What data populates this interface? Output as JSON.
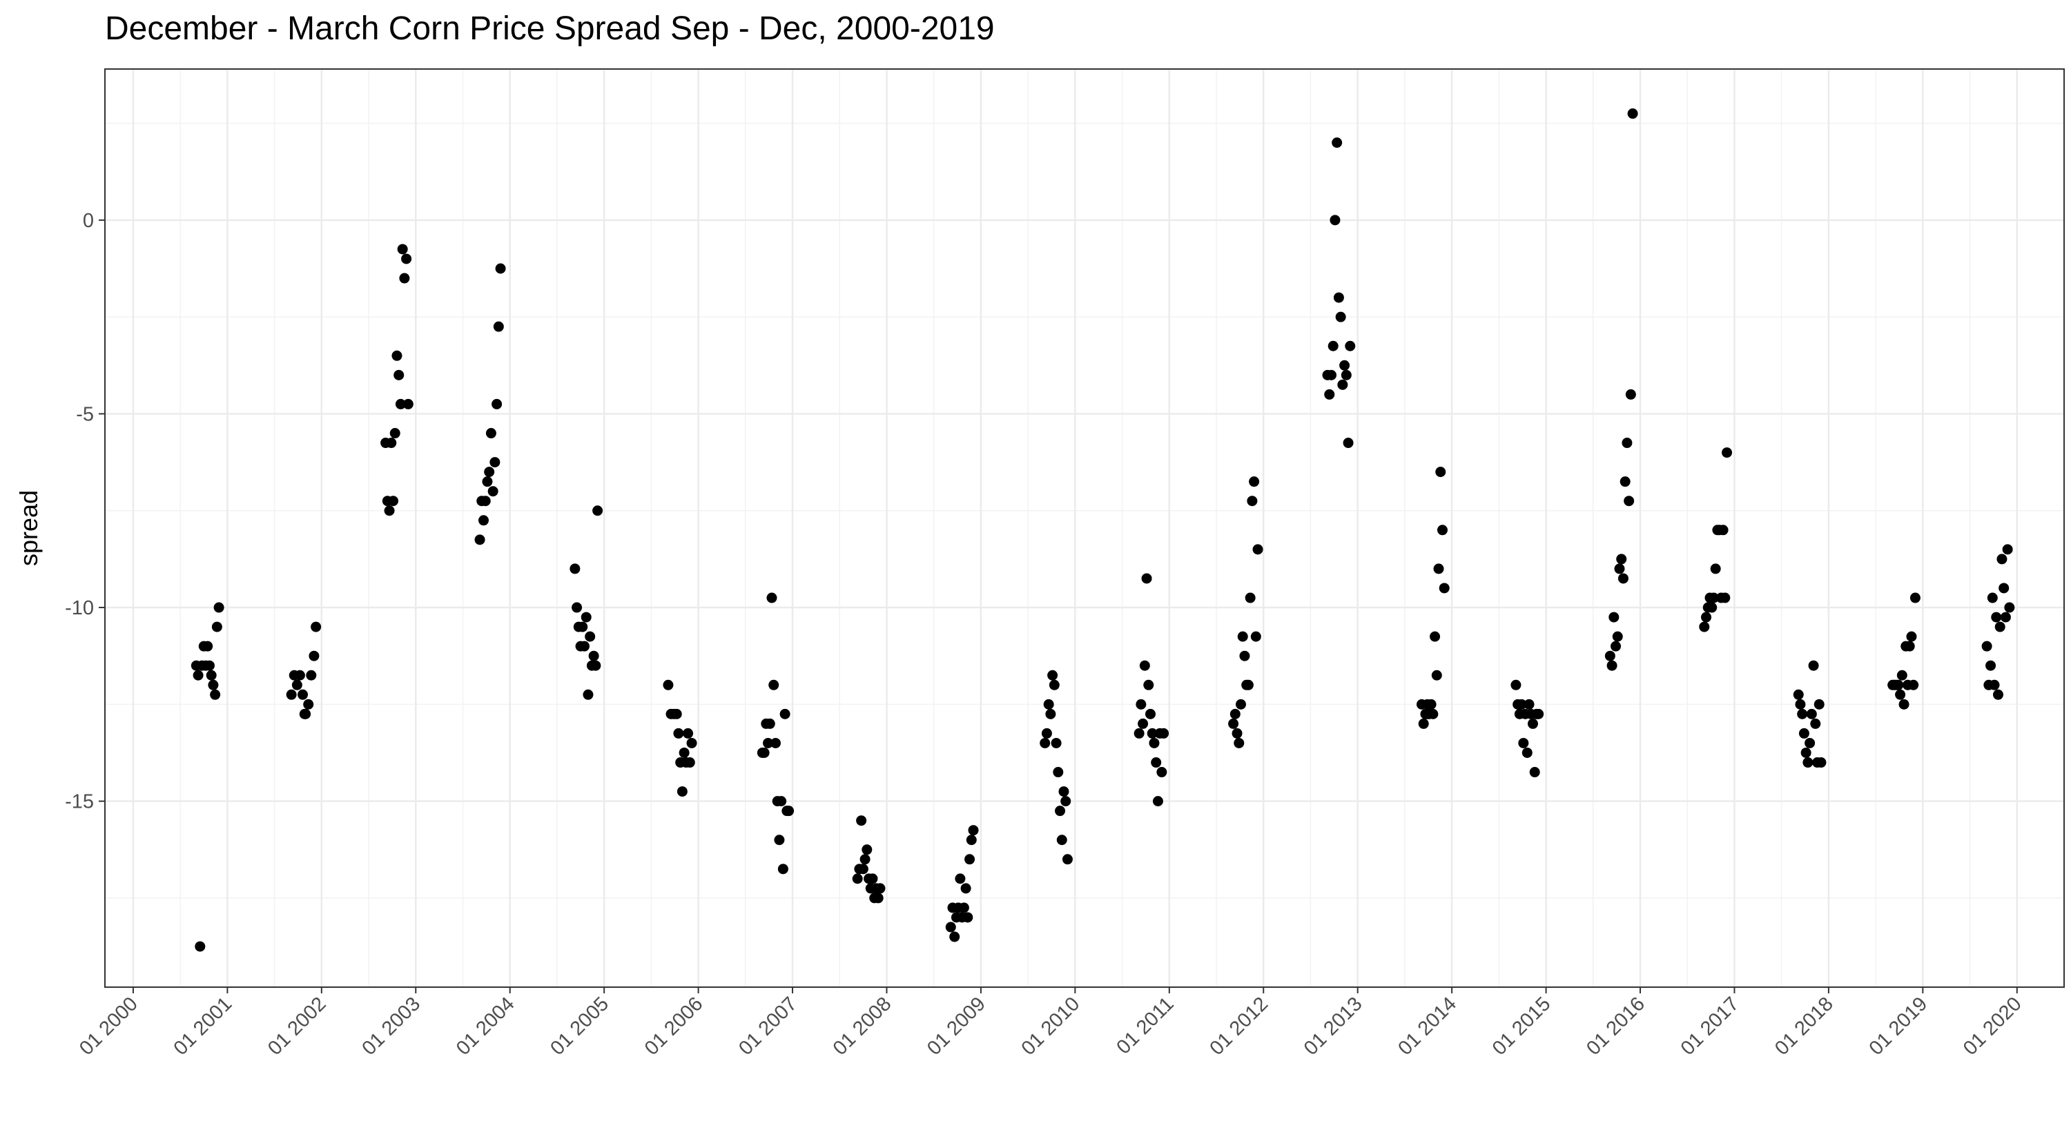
{
  "chart_data": {
    "type": "scatter",
    "title": "December - March Corn Price Spread Sep - Dec, 2000-2019",
    "xlabel": "",
    "ylabel": "spread",
    "xlim": [
      1999.7,
      2020.5
    ],
    "ylim": [
      -19.8,
      3.9
    ],
    "grid": true,
    "legend": "none",
    "point_color": "#000000",
    "x_ticks": [
      2000,
      2001,
      2002,
      2003,
      2004,
      2005,
      2006,
      2007,
      2008,
      2009,
      2010,
      2011,
      2012,
      2013,
      2014,
      2015,
      2016,
      2017,
      2018,
      2019,
      2020
    ],
    "x_tick_labels": [
      "01 2000",
      "01 2001",
      "01 2002",
      "01 2003",
      "01 2004",
      "01 2005",
      "01 2006",
      "01 2007",
      "01 2008",
      "01 2009",
      "01 2010",
      "01 2011",
      "01 2012",
      "01 2013",
      "01 2014",
      "01 2015",
      "01 2016",
      "01 2017",
      "01 2018",
      "01 2019",
      "01 2020"
    ],
    "y_ticks": [
      0,
      -5,
      -10,
      -15
    ],
    "y_tick_labels": [
      "0",
      "-5",
      "-10",
      "-15"
    ],
    "points": [
      {
        "x": 2000.67,
        "y": -11.5
      },
      {
        "x": 2000.69,
        "y": -11.75
      },
      {
        "x": 2000.71,
        "y": -18.75
      },
      {
        "x": 2000.73,
        "y": -11.5
      },
      {
        "x": 2000.75,
        "y": -11.0
      },
      {
        "x": 2000.77,
        "y": -11.5
      },
      {
        "x": 2000.79,
        "y": -11.0
      },
      {
        "x": 2000.81,
        "y": -11.5
      },
      {
        "x": 2000.83,
        "y": -11.75
      },
      {
        "x": 2000.85,
        "y": -12.0
      },
      {
        "x": 2000.87,
        "y": -12.25
      },
      {
        "x": 2000.89,
        "y": -10.5
      },
      {
        "x": 2000.91,
        "y": -10.0
      },
      {
        "x": 2001.68,
        "y": -12.25
      },
      {
        "x": 2001.71,
        "y": -11.75
      },
      {
        "x": 2001.74,
        "y": -12.0
      },
      {
        "x": 2001.77,
        "y": -11.75
      },
      {
        "x": 2001.8,
        "y": -12.25
      },
      {
        "x": 2001.83,
        "y": -12.75
      },
      {
        "x": 2001.86,
        "y": -12.5
      },
      {
        "x": 2001.89,
        "y": -11.75
      },
      {
        "x": 2001.92,
        "y": -11.25
      },
      {
        "x": 2001.94,
        "y": -10.5
      },
      {
        "x": 2001.82,
        "y": -12.75
      },
      {
        "x": 2002.68,
        "y": -5.75
      },
      {
        "x": 2002.7,
        "y": -7.25
      },
      {
        "x": 2002.72,
        "y": -7.5
      },
      {
        "x": 2002.74,
        "y": -5.75
      },
      {
        "x": 2002.76,
        "y": -7.25
      },
      {
        "x": 2002.78,
        "y": -5.5
      },
      {
        "x": 2002.8,
        "y": -3.5
      },
      {
        "x": 2002.82,
        "y": -4.0
      },
      {
        "x": 2002.84,
        "y": -4.75
      },
      {
        "x": 2002.86,
        "y": -0.75
      },
      {
        "x": 2002.88,
        "y": -1.5
      },
      {
        "x": 2002.9,
        "y": -1.0
      },
      {
        "x": 2002.92,
        "y": -4.75
      },
      {
        "x": 2003.68,
        "y": -8.25
      },
      {
        "x": 2003.7,
        "y": -7.25
      },
      {
        "x": 2003.72,
        "y": -7.75
      },
      {
        "x": 2003.74,
        "y": -7.25
      },
      {
        "x": 2003.76,
        "y": -6.75
      },
      {
        "x": 2003.78,
        "y": -6.5
      },
      {
        "x": 2003.8,
        "y": -5.5
      },
      {
        "x": 2003.82,
        "y": -7.0
      },
      {
        "x": 2003.84,
        "y": -6.25
      },
      {
        "x": 2003.86,
        "y": -4.75
      },
      {
        "x": 2003.88,
        "y": -2.75
      },
      {
        "x": 2003.9,
        "y": -1.25
      },
      {
        "x": 2004.69,
        "y": -9.0
      },
      {
        "x": 2004.71,
        "y": -10.0
      },
      {
        "x": 2004.73,
        "y": -10.5
      },
      {
        "x": 2004.75,
        "y": -11.0
      },
      {
        "x": 2004.77,
        "y": -10.5
      },
      {
        "x": 2004.79,
        "y": -11.0
      },
      {
        "x": 2004.81,
        "y": -10.25
      },
      {
        "x": 2004.83,
        "y": -12.25
      },
      {
        "x": 2004.85,
        "y": -10.75
      },
      {
        "x": 2004.87,
        "y": -11.5
      },
      {
        "x": 2004.89,
        "y": -11.25
      },
      {
        "x": 2004.91,
        "y": -11.5
      },
      {
        "x": 2004.93,
        "y": -7.5
      },
      {
        "x": 2005.68,
        "y": -12.0
      },
      {
        "x": 2005.71,
        "y": -12.75
      },
      {
        "x": 2005.74,
        "y": -12.75
      },
      {
        "x": 2005.77,
        "y": -12.75
      },
      {
        "x": 2005.79,
        "y": -13.25
      },
      {
        "x": 2005.81,
        "y": -14.0
      },
      {
        "x": 2005.83,
        "y": -14.75
      },
      {
        "x": 2005.85,
        "y": -13.75
      },
      {
        "x": 2005.87,
        "y": -14.0
      },
      {
        "x": 2005.89,
        "y": -13.25
      },
      {
        "x": 2005.91,
        "y": -14.0
      },
      {
        "x": 2005.93,
        "y": -13.5
      },
      {
        "x": 2006.68,
        "y": -13.75
      },
      {
        "x": 2006.7,
        "y": -13.75
      },
      {
        "x": 2006.72,
        "y": -13.0
      },
      {
        "x": 2006.74,
        "y": -13.5
      },
      {
        "x": 2006.76,
        "y": -13.0
      },
      {
        "x": 2006.78,
        "y": -9.75
      },
      {
        "x": 2006.8,
        "y": -12.0
      },
      {
        "x": 2006.82,
        "y": -13.5
      },
      {
        "x": 2006.84,
        "y": -15.0
      },
      {
        "x": 2006.86,
        "y": -16.0
      },
      {
        "x": 2006.88,
        "y": -15.0
      },
      {
        "x": 2006.9,
        "y": -16.75
      },
      {
        "x": 2006.92,
        "y": -12.75
      },
      {
        "x": 2006.94,
        "y": -15.25
      },
      {
        "x": 2006.96,
        "y": -15.25
      },
      {
        "x": 2007.69,
        "y": -17.0
      },
      {
        "x": 2007.71,
        "y": -16.75
      },
      {
        "x": 2007.73,
        "y": -15.5
      },
      {
        "x": 2007.75,
        "y": -16.75
      },
      {
        "x": 2007.77,
        "y": -16.5
      },
      {
        "x": 2007.79,
        "y": -16.25
      },
      {
        "x": 2007.81,
        "y": -17.0
      },
      {
        "x": 2007.83,
        "y": -17.25
      },
      {
        "x": 2007.85,
        "y": -17.0
      },
      {
        "x": 2007.87,
        "y": -17.5
      },
      {
        "x": 2007.89,
        "y": -17.25
      },
      {
        "x": 2007.91,
        "y": -17.5
      },
      {
        "x": 2007.93,
        "y": -17.25
      },
      {
        "x": 2008.68,
        "y": -18.25
      },
      {
        "x": 2008.7,
        "y": -17.75
      },
      {
        "x": 2008.72,
        "y": -18.5
      },
      {
        "x": 2008.74,
        "y": -18.0
      },
      {
        "x": 2008.76,
        "y": -17.75
      },
      {
        "x": 2008.78,
        "y": -17.0
      },
      {
        "x": 2008.8,
        "y": -18.0
      },
      {
        "x": 2008.82,
        "y": -17.75
      },
      {
        "x": 2008.84,
        "y": -17.25
      },
      {
        "x": 2008.86,
        "y": -18.0
      },
      {
        "x": 2008.88,
        "y": -16.5
      },
      {
        "x": 2008.9,
        "y": -16.0
      },
      {
        "x": 2008.92,
        "y": -15.75
      },
      {
        "x": 2009.68,
        "y": -13.5
      },
      {
        "x": 2009.7,
        "y": -13.25
      },
      {
        "x": 2009.72,
        "y": -12.5
      },
      {
        "x": 2009.74,
        "y": -12.75
      },
      {
        "x": 2009.76,
        "y": -11.75
      },
      {
        "x": 2009.78,
        "y": -12.0
      },
      {
        "x": 2009.8,
        "y": -13.5
      },
      {
        "x": 2009.82,
        "y": -14.25
      },
      {
        "x": 2009.84,
        "y": -15.25
      },
      {
        "x": 2009.86,
        "y": -16.0
      },
      {
        "x": 2009.88,
        "y": -14.75
      },
      {
        "x": 2009.9,
        "y": -15.0
      },
      {
        "x": 2009.92,
        "y": -16.5
      },
      {
        "x": 2010.68,
        "y": -13.25
      },
      {
        "x": 2010.7,
        "y": -12.5
      },
      {
        "x": 2010.72,
        "y": -13.0
      },
      {
        "x": 2010.74,
        "y": -11.5
      },
      {
        "x": 2010.76,
        "y": -9.25
      },
      {
        "x": 2010.78,
        "y": -12.0
      },
      {
        "x": 2010.8,
        "y": -12.75
      },
      {
        "x": 2010.82,
        "y": -13.25
      },
      {
        "x": 2010.84,
        "y": -13.5
      },
      {
        "x": 2010.86,
        "y": -14.0
      },
      {
        "x": 2010.88,
        "y": -15.0
      },
      {
        "x": 2010.9,
        "y": -13.25
      },
      {
        "x": 2010.92,
        "y": -14.25
      },
      {
        "x": 2010.94,
        "y": -13.25
      },
      {
        "x": 2011.68,
        "y": -13.0
      },
      {
        "x": 2011.7,
        "y": -12.75
      },
      {
        "x": 2011.72,
        "y": -13.25
      },
      {
        "x": 2011.74,
        "y": -13.5
      },
      {
        "x": 2011.76,
        "y": -12.5
      },
      {
        "x": 2011.78,
        "y": -10.75
      },
      {
        "x": 2011.8,
        "y": -11.25
      },
      {
        "x": 2011.82,
        "y": -12.0
      },
      {
        "x": 2011.84,
        "y": -12.0
      },
      {
        "x": 2011.86,
        "y": -9.75
      },
      {
        "x": 2011.88,
        "y": -7.25
      },
      {
        "x": 2011.9,
        "y": -6.75
      },
      {
        "x": 2011.92,
        "y": -10.75
      },
      {
        "x": 2011.94,
        "y": -8.5
      },
      {
        "x": 2012.68,
        "y": -4.0
      },
      {
        "x": 2012.7,
        "y": -4.5
      },
      {
        "x": 2012.72,
        "y": -4.0
      },
      {
        "x": 2012.74,
        "y": -3.25
      },
      {
        "x": 2012.76,
        "y": 0.0
      },
      {
        "x": 2012.78,
        "y": 2.0
      },
      {
        "x": 2012.8,
        "y": -2.0
      },
      {
        "x": 2012.82,
        "y": -2.5
      },
      {
        "x": 2012.84,
        "y": -4.25
      },
      {
        "x": 2012.86,
        "y": -3.75
      },
      {
        "x": 2012.88,
        "y": -4.0
      },
      {
        "x": 2012.9,
        "y": -5.75
      },
      {
        "x": 2012.92,
        "y": -3.25
      },
      {
        "x": 2013.68,
        "y": -12.5
      },
      {
        "x": 2013.7,
        "y": -13.0
      },
      {
        "x": 2013.72,
        "y": -12.75
      },
      {
        "x": 2013.74,
        "y": -12.5
      },
      {
        "x": 2013.76,
        "y": -12.75
      },
      {
        "x": 2013.78,
        "y": -12.5
      },
      {
        "x": 2013.8,
        "y": -12.75
      },
      {
        "x": 2013.82,
        "y": -10.75
      },
      {
        "x": 2013.84,
        "y": -11.75
      },
      {
        "x": 2013.86,
        "y": -9.0
      },
      {
        "x": 2013.88,
        "y": -6.5
      },
      {
        "x": 2013.9,
        "y": -8.0
      },
      {
        "x": 2013.92,
        "y": -9.5
      },
      {
        "x": 2013.74,
        "y": -12.75
      },
      {
        "x": 2014.68,
        "y": -12.0
      },
      {
        "x": 2014.7,
        "y": -12.5
      },
      {
        "x": 2014.72,
        "y": -12.75
      },
      {
        "x": 2014.74,
        "y": -12.5
      },
      {
        "x": 2014.76,
        "y": -13.5
      },
      {
        "x": 2014.78,
        "y": -12.75
      },
      {
        "x": 2014.8,
        "y": -13.75
      },
      {
        "x": 2014.82,
        "y": -12.5
      },
      {
        "x": 2014.84,
        "y": -12.75
      },
      {
        "x": 2014.86,
        "y": -13.0
      },
      {
        "x": 2014.88,
        "y": -14.25
      },
      {
        "x": 2014.9,
        "y": -12.75
      },
      {
        "x": 2014.92,
        "y": -12.75
      },
      {
        "x": 2015.68,
        "y": -11.25
      },
      {
        "x": 2015.7,
        "y": -11.5
      },
      {
        "x": 2015.72,
        "y": -10.25
      },
      {
        "x": 2015.74,
        "y": -11.0
      },
      {
        "x": 2015.76,
        "y": -10.75
      },
      {
        "x": 2015.78,
        "y": -9.0
      },
      {
        "x": 2015.8,
        "y": -8.75
      },
      {
        "x": 2015.82,
        "y": -9.25
      },
      {
        "x": 2015.84,
        "y": -6.75
      },
      {
        "x": 2015.86,
        "y": -5.75
      },
      {
        "x": 2015.88,
        "y": -7.25
      },
      {
        "x": 2015.9,
        "y": -4.5
      },
      {
        "x": 2015.92,
        "y": 2.75
      },
      {
        "x": 2016.68,
        "y": -10.5
      },
      {
        "x": 2016.7,
        "y": -10.25
      },
      {
        "x": 2016.72,
        "y": -10.0
      },
      {
        "x": 2016.74,
        "y": -9.75
      },
      {
        "x": 2016.76,
        "y": -10.0
      },
      {
        "x": 2016.78,
        "y": -9.75
      },
      {
        "x": 2016.8,
        "y": -9.0
      },
      {
        "x": 2016.82,
        "y": -8.0
      },
      {
        "x": 2016.84,
        "y": -8.0
      },
      {
        "x": 2016.86,
        "y": -9.75
      },
      {
        "x": 2016.88,
        "y": -8.0
      },
      {
        "x": 2016.9,
        "y": -9.75
      },
      {
        "x": 2016.92,
        "y": -6.0
      },
      {
        "x": 2017.68,
        "y": -12.25
      },
      {
        "x": 2017.7,
        "y": -12.5
      },
      {
        "x": 2017.72,
        "y": -12.75
      },
      {
        "x": 2017.74,
        "y": -13.25
      },
      {
        "x": 2017.76,
        "y": -13.75
      },
      {
        "x": 2017.78,
        "y": -14.0
      },
      {
        "x": 2017.8,
        "y": -13.5
      },
      {
        "x": 2017.82,
        "y": -12.75
      },
      {
        "x": 2017.84,
        "y": -11.5
      },
      {
        "x": 2017.86,
        "y": -13.0
      },
      {
        "x": 2017.88,
        "y": -14.0
      },
      {
        "x": 2017.9,
        "y": -12.5
      },
      {
        "x": 2017.92,
        "y": -14.0
      },
      {
        "x": 2018.68,
        "y": -12.0
      },
      {
        "x": 2018.7,
        "y": -12.0
      },
      {
        "x": 2018.72,
        "y": -12.0
      },
      {
        "x": 2018.74,
        "y": -12.0
      },
      {
        "x": 2018.76,
        "y": -12.25
      },
      {
        "x": 2018.78,
        "y": -11.75
      },
      {
        "x": 2018.8,
        "y": -12.5
      },
      {
        "x": 2018.82,
        "y": -11.0
      },
      {
        "x": 2018.84,
        "y": -12.0
      },
      {
        "x": 2018.86,
        "y": -11.0
      },
      {
        "x": 2018.88,
        "y": -10.75
      },
      {
        "x": 2018.9,
        "y": -12.0
      },
      {
        "x": 2018.92,
        "y": -9.75
      },
      {
        "x": 2019.68,
        "y": -11.0
      },
      {
        "x": 2019.7,
        "y": -12.0
      },
      {
        "x": 2019.72,
        "y": -11.5
      },
      {
        "x": 2019.74,
        "y": -9.75
      },
      {
        "x": 2019.76,
        "y": -12.0
      },
      {
        "x": 2019.78,
        "y": -10.25
      },
      {
        "x": 2019.8,
        "y": -12.25
      },
      {
        "x": 2019.82,
        "y": -10.5
      },
      {
        "x": 2019.84,
        "y": -8.75
      },
      {
        "x": 2019.86,
        "y": -9.5
      },
      {
        "x": 2019.88,
        "y": -10.25
      },
      {
        "x": 2019.9,
        "y": -8.5
      },
      {
        "x": 2019.92,
        "y": -10.0
      }
    ]
  }
}
